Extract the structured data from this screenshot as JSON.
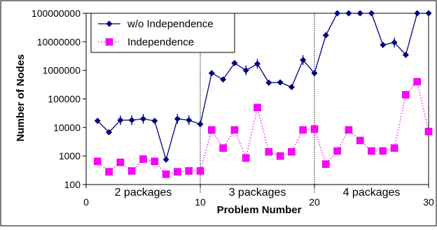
{
  "chart_data": {
    "type": "line",
    "xlabel": "Problem Number",
    "ylabel": "Number of Nodes",
    "x_scale": "linear",
    "y_scale": "log",
    "xlim": [
      0,
      30
    ],
    "ylim": [
      100,
      100000000
    ],
    "x_ticks": [
      "0",
      "10",
      "20",
      "30"
    ],
    "y_ticks": [
      "100",
      "1000",
      "10000",
      "100000",
      "1000000",
      "10000000",
      "100000000"
    ],
    "legend_position": "top-left",
    "grid": false,
    "group_separators": [
      10,
      20
    ],
    "group_labels": [
      {
        "text": "2 packages",
        "x": 5
      },
      {
        "text": "3 packages",
        "x": 15
      },
      {
        "text": "4 packages",
        "x": 25
      }
    ],
    "series": [
      {
        "name": "w/o Independence",
        "color": "#000080",
        "marker": "diamond",
        "line_style": "solid",
        "x": [
          1,
          2,
          3,
          4,
          5,
          6,
          7,
          8,
          9,
          10,
          11,
          12,
          13,
          14,
          15,
          16,
          17,
          18,
          19,
          20,
          21,
          22,
          23,
          24,
          25,
          26,
          27,
          28,
          29,
          30
        ],
        "values": [
          17000,
          6800,
          18000,
          18000,
          20000,
          17000,
          750,
          20000,
          18000,
          13000,
          800000,
          480000,
          1800000,
          1000000,
          1700000,
          370000,
          380000,
          260000,
          2300000,
          800000,
          17000000,
          100000000,
          100000000,
          100000000,
          100000000,
          7800000,
          9500000,
          3500000,
          100000000,
          100000000
        ],
        "error_markers": [
          3,
          4,
          5,
          8,
          9,
          14,
          15,
          19,
          27
        ]
      },
      {
        "name": "Independence",
        "color": "#ff00ff",
        "marker": "square",
        "line_style": "dotted",
        "x": [
          1,
          2,
          3,
          4,
          5,
          6,
          7,
          8,
          9,
          10,
          11,
          12,
          13,
          14,
          15,
          16,
          17,
          18,
          19,
          20,
          21,
          22,
          23,
          24,
          25,
          26,
          27,
          28,
          29,
          30
        ],
        "values": [
          650,
          280,
          600,
          300,
          780,
          650,
          230,
          280,
          300,
          300,
          8200,
          1900,
          8200,
          850,
          50000,
          1400,
          1000,
          1400,
          8200,
          8800,
          520,
          1500,
          8200,
          3500,
          1500,
          1500,
          1900,
          140000,
          400000,
          7200
        ]
      }
    ]
  }
}
